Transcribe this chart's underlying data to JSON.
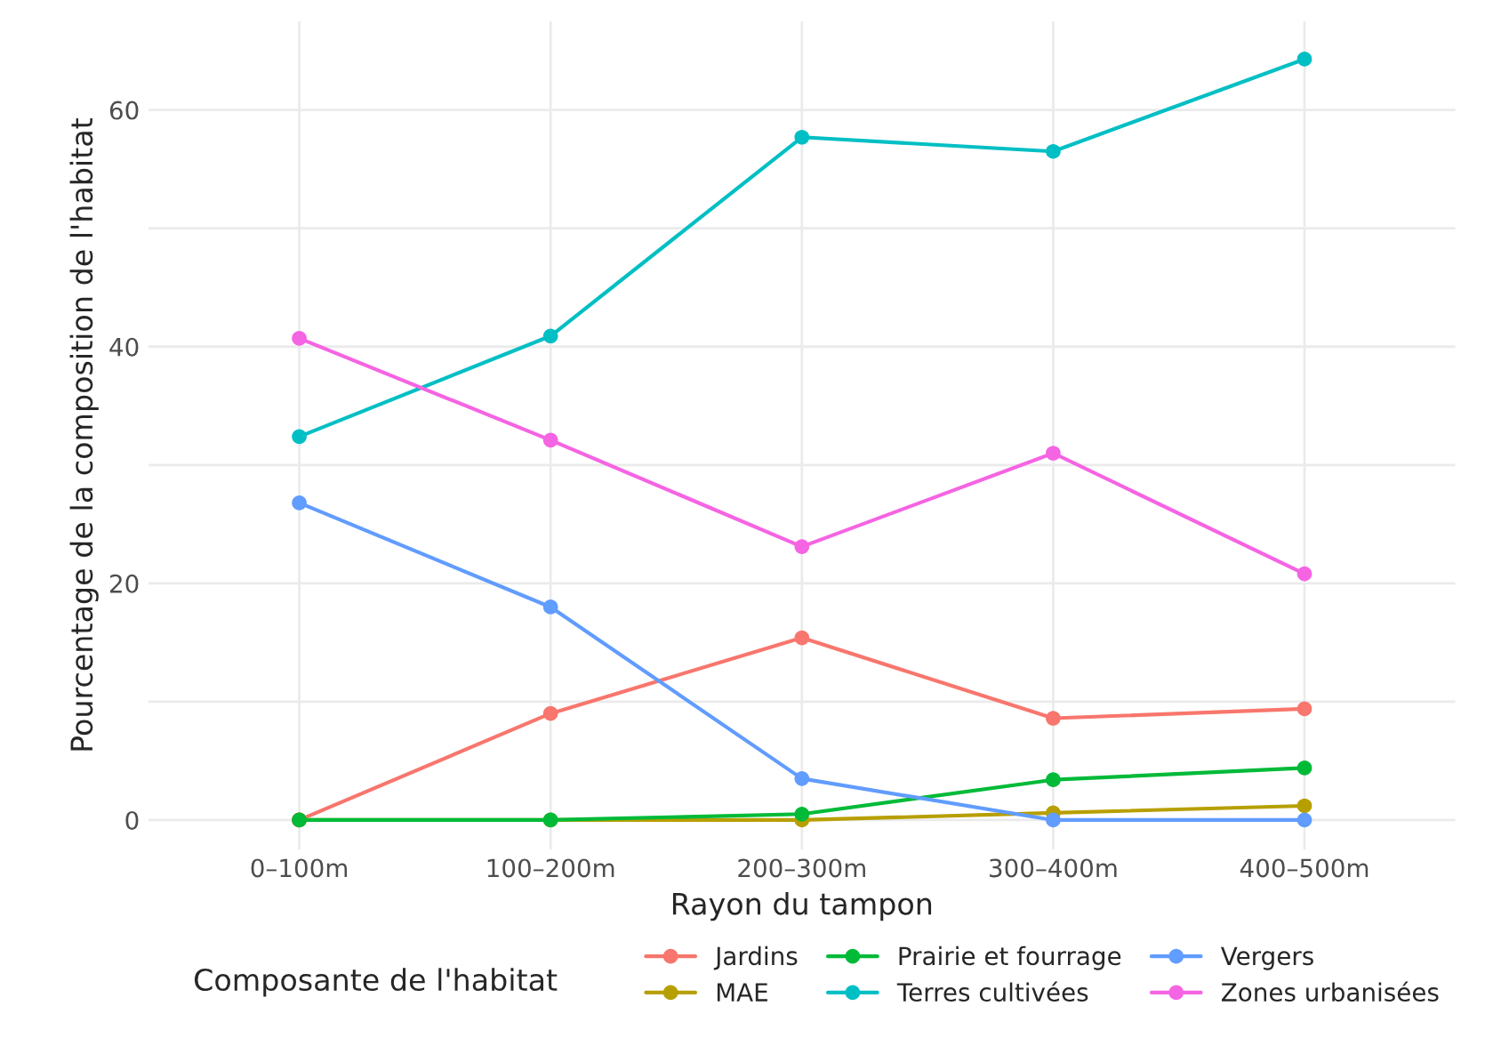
{
  "chart_data": {
    "type": "line",
    "xlabel": "Rayon du tampon",
    "ylabel": "Pourcentage de la composition de l'habitat",
    "legend_title": "Composante de l'habitat",
    "categories": [
      "0–100m",
      "100–200m",
      "200–300m",
      "300–400m",
      "400–500m"
    ],
    "series": [
      {
        "name": "Jardins",
        "color": "#f8766d",
        "values": [
          0,
          9.0,
          15.4,
          8.6,
          9.4
        ]
      },
      {
        "name": "MAE",
        "color": "#b79f00",
        "values": [
          0,
          0,
          0,
          0.6,
          1.2
        ]
      },
      {
        "name": "Prairie et fourrage",
        "color": "#00ba38",
        "values": [
          0,
          0,
          0.5,
          3.4,
          4.4
        ]
      },
      {
        "name": "Terres cultivées",
        "color": "#00bfc4",
        "values": [
          32.4,
          40.9,
          57.7,
          56.5,
          64.3
        ]
      },
      {
        "name": "Vergers",
        "color": "#619cff",
        "values": [
          26.8,
          18.0,
          3.5,
          0,
          0
        ]
      },
      {
        "name": "Zones urbanisées",
        "color": "#f564e3",
        "values": [
          40.7,
          32.1,
          23.1,
          31.0,
          20.8
        ]
      }
    ],
    "ylim": [
      -2.5,
      67.5
    ],
    "yticks": [
      0,
      {
        "value": 10,
        "label": null
      },
      20,
      {
        "value": 30,
        "label": null
      },
      40,
      {
        "value": 50,
        "label": null
      },
      60
    ],
    "grid": true,
    "legend": "bottom",
    "marker": "circle",
    "line_style": "solid"
  }
}
